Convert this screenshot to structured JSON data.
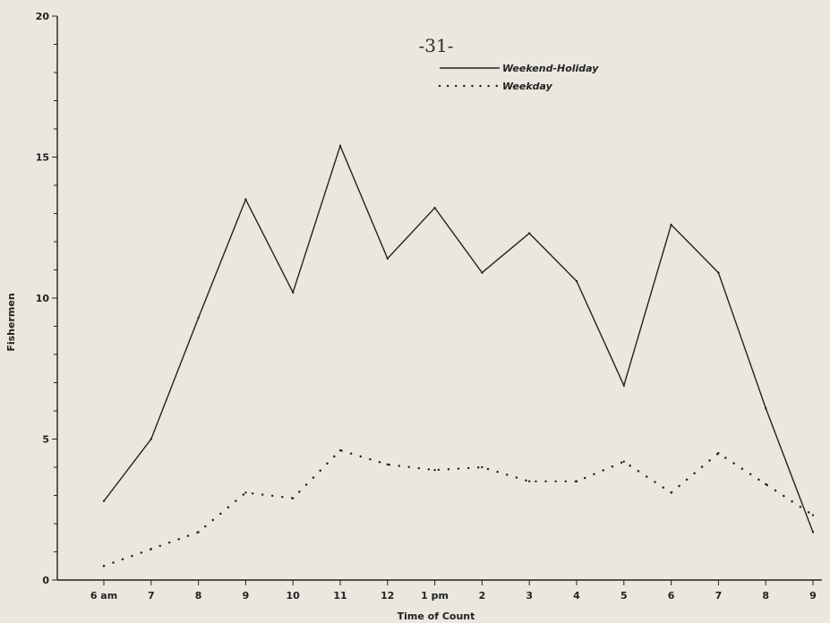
{
  "page_number": "-31-",
  "chart_data": {
    "type": "line",
    "title": "",
    "xlabel": "Time of Count",
    "ylabel": "Fishermen",
    "categories": [
      "6 am",
      "7",
      "8",
      "9",
      "10",
      "11",
      "12",
      "1 pm",
      "2",
      "3",
      "4",
      "5",
      "6",
      "7",
      "8",
      "9"
    ],
    "ylim": [
      0,
      20
    ],
    "yticks": [
      0,
      5,
      10,
      15,
      20
    ],
    "grid": false,
    "legend_position": "top-right",
    "series": [
      {
        "name": "Weekend-Holiday",
        "style": "solid",
        "values": [
          2.8,
          5.0,
          9.3,
          13.5,
          10.2,
          15.4,
          11.4,
          13.2,
          10.9,
          12.3,
          10.6,
          6.9,
          12.6,
          10.9,
          6.1,
          1.7
        ]
      },
      {
        "name": "Weekday",
        "style": "dotted",
        "values": [
          0.5,
          1.1,
          1.7,
          3.1,
          2.9,
          4.6,
          4.1,
          3.9,
          4.0,
          3.5,
          3.5,
          4.2,
          3.1,
          4.5,
          3.4,
          2.3
        ]
      }
    ],
    "colors": {
      "line": "#222222",
      "paper": "#eae7de"
    }
  }
}
